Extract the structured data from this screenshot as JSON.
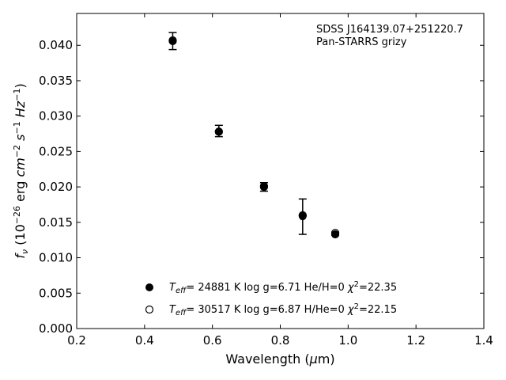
{
  "chart_data": {
    "type": "scatter",
    "xlabel": "Wavelength (μm)",
    "ylabel": "f_ν (10^-26 erg cm^-2 s^-1 Hz^-1)",
    "xlim": [
      0.2,
      1.4
    ],
    "ylim": [
      0.0,
      0.0445
    ],
    "x_ticks": [
      "0.2",
      "0.4",
      "0.6",
      "0.8",
      "1.0",
      "1.2",
      "1.4"
    ],
    "y_ticks": [
      "0.000",
      "0.005",
      "0.010",
      "0.015",
      "0.020",
      "0.025",
      "0.030",
      "0.035",
      "0.040"
    ],
    "ticks_direction": "in",
    "grid": false,
    "legend_placement": "lower-left",
    "annotation": {
      "line1": "SDSS J164139.07+251220.7",
      "line2": "Pan-STARRS grizy"
    },
    "observed": {
      "x": [
        0.483,
        0.619,
        0.752,
        0.866,
        0.962
      ],
      "y": [
        0.0406,
        0.0279,
        0.02,
        0.0158,
        0.0134
      ],
      "yerr": [
        0.0012,
        0.0008,
        0.0006,
        0.0025,
        0.0002
      ]
    },
    "series": [
      {
        "name": "T_eff= 24881 K  log g=6.71  He/H=0  χ²=22.35",
        "marker": "filled-circle",
        "x": [
          0.483,
          0.619,
          0.752,
          0.866,
          0.962
        ],
        "y": [
          0.0406,
          0.0278,
          0.0201,
          0.016,
          0.0133
        ]
      },
      {
        "name": "T_eff= 30517 K  log g=6.87  H/He=0  χ²=22.15",
        "marker": "open-circle",
        "x": [
          0.483,
          0.619,
          0.752,
          0.866,
          0.962
        ],
        "y": [
          0.0407,
          0.0278,
          0.02,
          0.0159,
          0.0135
        ]
      }
    ],
    "legend": [
      {
        "teff_value": "= 24881 K  log g=6.71  He/H=0  ",
        "chi_value": "=22.35"
      },
      {
        "teff_value": "= 30517 K  log g=6.87  H/He=0  ",
        "chi_value": "=22.15"
      }
    ]
  }
}
